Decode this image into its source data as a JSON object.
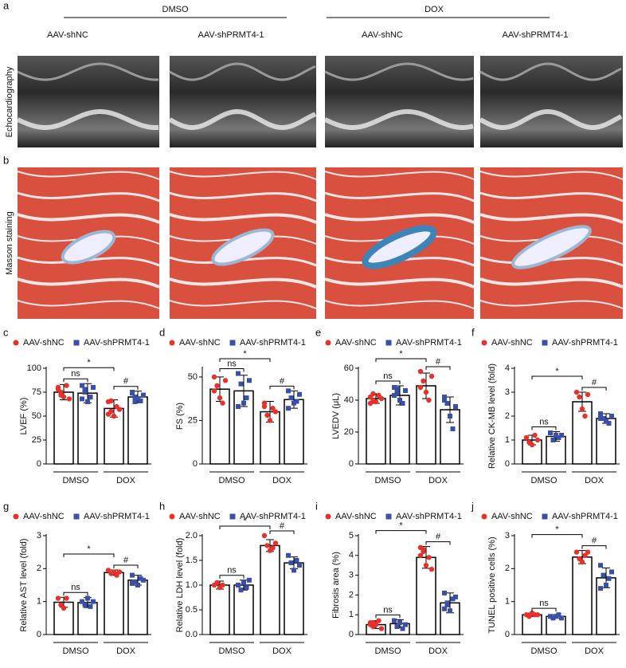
{
  "figure": {
    "panels": [
      "a",
      "b"
    ],
    "conditions": [
      "DMSO",
      "DOX"
    ],
    "columns": [
      "AAV-shNC",
      "AAV-shPRMT4-1",
      "AAV-shNC",
      "AAV-shPRMT4-1"
    ],
    "rows": [
      "Echocardiography",
      "Masson staining"
    ]
  },
  "chart_data": [
    {
      "type": "bar",
      "panel": "c",
      "ylabel": "LVEF (%)",
      "categories": [
        "DMSO",
        "DOX"
      ],
      "ylim": [
        0,
        100
      ],
      "yticks": [
        0,
        25,
        50,
        75,
        100
      ],
      "annotations": [
        "ns",
        "*",
        "#"
      ],
      "series": [
        {
          "name": "AAV-shNC",
          "color": "#e8312a",
          "marker": "circle",
          "values": [
            75,
            58
          ],
          "errors": [
            8,
            9
          ],
          "points": [
            [
              80,
              75,
              70,
              82,
              68,
              78,
              72
            ],
            [
              65,
              55,
              50,
              60,
              57,
              52,
              66
            ]
          ]
        },
        {
          "name": "AAV-shPRMT4-1",
          "color": "#3a4fa8",
          "marker": "square",
          "values": [
            74,
            70
          ],
          "errors": [
            10,
            6
          ],
          "points": [
            [
              82,
              78,
              65,
              70,
              80,
              68,
              75
            ],
            [
              75,
              70,
              68,
              66,
              72,
              74,
              65
            ]
          ]
        }
      ]
    },
    {
      "type": "bar",
      "panel": "d",
      "ylabel": "FS (%)",
      "categories": [
        "DMSO",
        "DOX"
      ],
      "ylim": [
        0,
        55
      ],
      "yticks": [
        0,
        25,
        50
      ],
      "annotations": [
        "ns",
        "*",
        "#"
      ],
      "series": [
        {
          "name": "AAV-shNC",
          "color": "#e8312a",
          "marker": "circle",
          "values": [
            43,
            30
          ],
          "errors": [
            7,
            6
          ],
          "points": [
            [
              50,
              45,
              38,
              35,
              48,
              42
            ],
            [
              35,
              28,
              25,
              32,
              30,
              33
            ]
          ]
        },
        {
          "name": "AAV-shPRMT4-1",
          "color": "#3a4fa8",
          "marker": "square",
          "values": [
            42,
            37
          ],
          "errors": [
            9,
            5
          ],
          "points": [
            [
              52,
              46,
              35,
              38,
              48,
              33
            ],
            [
              42,
              38,
              35,
              36,
              40,
              32
            ]
          ]
        }
      ]
    },
    {
      "type": "bar",
      "panel": "e",
      "ylabel": "LVEDV (μL)",
      "categories": [
        "DMSO",
        "DOX"
      ],
      "ylim": [
        0,
        60
      ],
      "yticks": [
        0,
        20,
        40,
        60
      ],
      "annotations": [
        "ns",
        "*",
        "#"
      ],
      "series": [
        {
          "name": "AAV-shNC",
          "color": "#e8312a",
          "marker": "circle",
          "values": [
            41,
            49
          ],
          "errors": [
            3,
            8
          ],
          "points": [
            [
              42,
              40,
              39,
              43,
              41,
              38,
              44
            ],
            [
              58,
              52,
              45,
              40,
              55,
              48
            ]
          ]
        },
        {
          "name": "AAV-shPRMT4-1",
          "color": "#3a4fa8",
          "marker": "square",
          "values": [
            43,
            34
          ],
          "errors": [
            6,
            8
          ],
          "points": [
            [
              48,
              45,
              40,
              38,
              46,
              43,
              47
            ],
            [
              42,
              38,
              30,
              22,
              36,
              40
            ]
          ]
        }
      ]
    },
    {
      "type": "bar",
      "panel": "f",
      "ylabel": "Relative CK-MB level (fold)",
      "categories": [
        "DMSO",
        "DOX"
      ],
      "ylim": [
        0,
        4
      ],
      "yticks": [
        0,
        1,
        2,
        3,
        4
      ],
      "annotations": [
        "ns",
        "*",
        "#"
      ],
      "series": [
        {
          "name": "AAV-shNC",
          "color": "#e8312a",
          "marker": "circle",
          "values": [
            1.0,
            2.6
          ],
          "errors": [
            0.2,
            0.4
          ],
          "points": [
            [
              1.1,
              0.9,
              0.8,
              1.2,
              1.0
            ],
            [
              3.0,
              2.8,
              2.3,
              2.0,
              2.9
            ]
          ]
        },
        {
          "name": "AAV-shPRMT4-1",
          "color": "#3a4fa8",
          "marker": "square",
          "values": [
            1.15,
            1.9
          ],
          "errors": [
            0.2,
            0.2
          ],
          "points": [
            [
              1.3,
              1.0,
              1.2,
              1.1,
              1.2
            ],
            [
              2.1,
              1.9,
              1.8,
              1.7,
              2.0,
              1.9
            ]
          ]
        }
      ]
    },
    {
      "type": "bar",
      "panel": "g",
      "ylabel": "Relative AST level (fold)",
      "categories": [
        "DMSO",
        "DOX"
      ],
      "ylim": [
        0,
        3
      ],
      "yticks": [
        0,
        1,
        2,
        3
      ],
      "annotations": [
        "ns",
        "*",
        "#"
      ],
      "series": [
        {
          "name": "AAV-shNC",
          "color": "#e8312a",
          "marker": "circle",
          "values": [
            0.98,
            1.88
          ],
          "errors": [
            0.15,
            0.08
          ],
          "points": [
            [
              1.1,
              0.9,
              0.8,
              1.1
            ],
            [
              1.95,
              1.85,
              1.9,
              1.8,
              1.9
            ]
          ]
        },
        {
          "name": "AAV-shPRMT4-1",
          "color": "#3a4fa8",
          "marker": "square",
          "values": [
            0.97,
            1.65
          ],
          "errors": [
            0.15,
            0.15
          ],
          "points": [
            [
              1.0,
              0.9,
              1.1,
              0.85,
              1.0
            ],
            [
              1.8,
              1.6,
              1.5,
              1.7,
              1.65,
              1.55
            ]
          ]
        }
      ]
    },
    {
      "type": "bar",
      "panel": "h",
      "ylabel": "Relative LDH level (fold)",
      "categories": [
        "DMSO",
        "DOX"
      ],
      "ylim": [
        0,
        2
      ],
      "yticks": [
        {
          "value": 0,
          "label": "0.0"
        },
        {
          "value": 0.5,
          "label": "0.5"
        },
        {
          "value": 1,
          "label": "1.0"
        },
        {
          "value": 1.5,
          "label": "1.5"
        },
        {
          "value": 2,
          "label": "2.0"
        }
      ],
      "annotations": [
        "ns",
        "*",
        "#"
      ],
      "series": [
        {
          "name": "AAV-shNC",
          "color": "#e8312a",
          "marker": "circle",
          "values": [
            1.0,
            1.8
          ],
          "errors": [
            0.08,
            0.12
          ],
          "points": [
            [
              1.0,
              1.05,
              0.95,
              1.0
            ],
            [
              2.0,
              1.8,
              1.7,
              1.75,
              1.85
            ]
          ]
        },
        {
          "name": "AAV-shPRMT4-1",
          "color": "#3a4fa8",
          "marker": "square",
          "values": [
            1.0,
            1.45
          ],
          "errors": [
            0.1,
            0.12
          ],
          "points": [
            [
              1.0,
              0.9,
              1.05,
              0.95,
              1.1
            ],
            [
              1.6,
              1.45,
              1.3,
              1.5,
              1.4
            ]
          ]
        }
      ]
    },
    {
      "type": "bar",
      "panel": "i",
      "ylabel": "Fibrosis area (%)",
      "categories": [
        "DMSO",
        "DOX"
      ],
      "ylim": [
        0,
        5
      ],
      "yticks": [
        0,
        1,
        2,
        3,
        4,
        5
      ],
      "annotations": [
        "ns",
        "*",
        "#"
      ],
      "series": [
        {
          "name": "AAV-shNC",
          "color": "#e8312a",
          "marker": "circle",
          "values": [
            0.5,
            3.9
          ],
          "errors": [
            0.2,
            0.55
          ],
          "points": [
            [
              0.6,
              0.4,
              0.5,
              0.7,
              0.3,
              0.5,
              0.6
            ],
            [
              4.4,
              4.2,
              3.5,
              3.9,
              3.3,
              4.0,
              4.3
            ]
          ]
        },
        {
          "name": "AAV-shPRMT4-1",
          "color": "#3a4fa8",
          "marker": "square",
          "values": [
            0.55,
            1.6
          ],
          "errors": [
            0.2,
            0.5
          ],
          "points": [
            [
              0.7,
              0.4,
              0.6,
              0.3,
              0.5,
              0.7
            ],
            [
              2.1,
              1.5,
              1.2,
              1.8,
              1.9,
              1.3,
              1.6
            ]
          ]
        }
      ]
    },
    {
      "type": "bar",
      "panel": "j",
      "ylabel": "TUNEL positive cells (%)",
      "categories": [
        "DMSO",
        "DOX"
      ],
      "ylim": [
        0,
        3
      ],
      "yticks": [
        0,
        1,
        2,
        3
      ],
      "annotations": [
        "ns",
        "*",
        "#"
      ],
      "series": [
        {
          "name": "AAV-shNC",
          "color": "#e8312a",
          "marker": "circle",
          "values": [
            0.6,
            2.35
          ],
          "errors": [
            0.05,
            0.2
          ],
          "points": [
            [
              0.6,
              0.55,
              0.65,
              0.6,
              0.6
            ],
            [
              2.5,
              2.3,
              2.2,
              2.4,
              2.5
            ]
          ]
        },
        {
          "name": "AAV-shPRMT4-1",
          "color": "#3a4fa8",
          "marker": "square",
          "values": [
            0.55,
            1.72
          ],
          "errors": [
            0.05,
            0.3
          ],
          "points": [
            [
              0.55,
              0.5,
              0.55,
              0.6,
              0.5
            ],
            [
              2.1,
              1.8,
              1.5,
              1.7,
              1.9,
              1.4
            ]
          ]
        }
      ]
    }
  ]
}
